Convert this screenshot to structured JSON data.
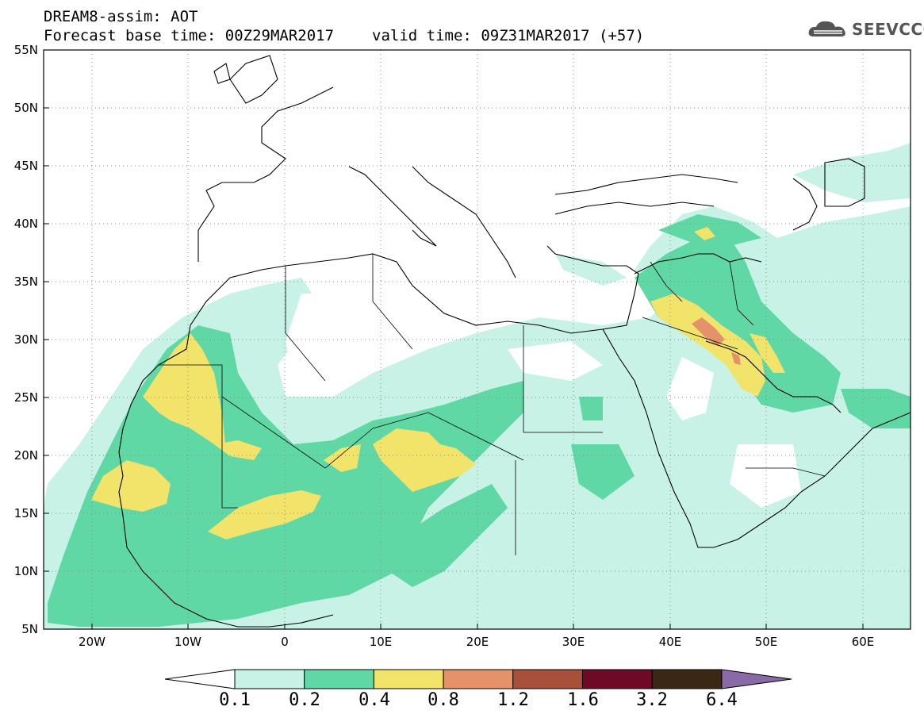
{
  "header": {
    "title_line1": "DREAM8-assim: AOT",
    "base_time": "Forecast base time: 00Z29MAR2017",
    "valid_time": "valid time: 09Z31MAR2017 (+57)"
  },
  "logo": {
    "text": "SEEVCCC"
  },
  "map": {
    "projection": "lat-lon",
    "lon_range": [
      -25,
      65
    ],
    "lat_range": [
      5,
      55
    ],
    "lat_labels": [
      "55N",
      "50N",
      "45N",
      "40N",
      "35N",
      "30N",
      "25N",
      "20N",
      "15N",
      "10N",
      "5N"
    ],
    "lon_labels": [
      "20W",
      "10W",
      "0",
      "10E",
      "20E",
      "30E",
      "40E",
      "50E",
      "60E"
    ],
    "grid": "dotted"
  },
  "colorbar": {
    "labels": [
      "0.1",
      "0.2",
      "0.4",
      "0.8",
      "1.2",
      "1.6",
      "3.2",
      "6.4"
    ],
    "colors": [
      "#c8f2e6",
      "#5fd8a6",
      "#f2e36a",
      "#e5926a",
      "#a9503b",
      "#6e0a26",
      "#3a2716",
      "#8a6aa6"
    ]
  }
}
